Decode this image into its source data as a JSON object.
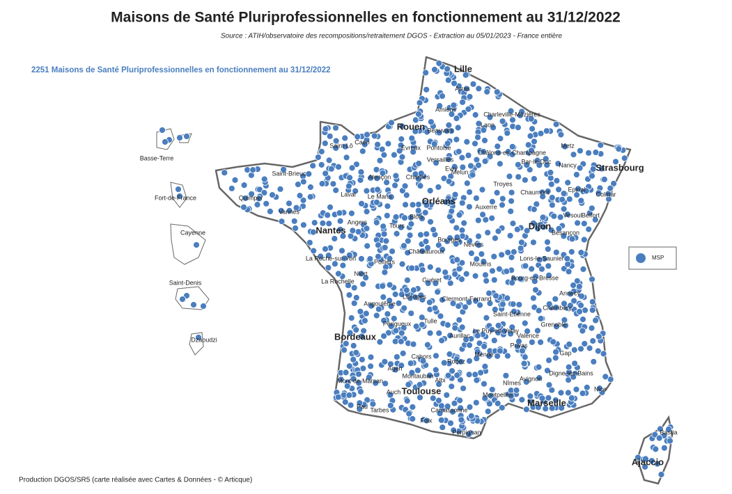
{
  "header": {
    "title": "Maisons de Santé Pluriprofessionnelles en fonctionnement au 31/12/2022",
    "source": "Source : ATIH/observatoire des recompositions/retraitement DGOS - Extraction au 05/01/2023 - France entière"
  },
  "map": {
    "subtitle": "2251 Maisons de Santé Pluriprofessionnelles en fonctionnement au 31/12/2022",
    "legend": {
      "label": "MSP"
    },
    "cities": [
      "Lille",
      "Arras",
      "Amiens",
      "Rouen",
      "Beauvais",
      "Caen",
      "Saint-Lô",
      "Evreux",
      "Pontoise",
      "Versailles",
      "Charleville-Mézières",
      "Laon",
      "Châlons-en-Champagne",
      "Bar-le-Duc",
      "Metz",
      "Nancy",
      "Strasbourg",
      "Epinal",
      "Colmar",
      "Saint-Brieuc",
      "Quimper",
      "Vannes",
      "Alençon",
      "Laval",
      "Le Mans",
      "Chartres",
      "Evry",
      "Melun",
      "Troyes",
      "Chaumont",
      "Orléans",
      "Auxerre",
      "Dijon",
      "Vesoul",
      "Belfort",
      "Angers",
      "Nantes",
      "Tours",
      "Blois",
      "Besançon",
      "Bourges",
      "Nevers",
      "Châteauroux",
      "La Roche-sur-Yon",
      "Niort",
      "Poitiers",
      "Moulins",
      "Lons-le-Saunier",
      "La Rochelle",
      "Guéret",
      "Bourg-en-Bresse",
      "Annecy",
      "Limoges",
      "Clermont-Ferrand",
      "Chambéry",
      "Angoulême",
      "Saint-Etienne",
      "Grenoble",
      "Périgueux",
      "Tulle",
      "Le Puy-en-Velay",
      "Bordeaux",
      "Aurillac",
      "Valence",
      "Privas",
      "Gap",
      "Mende",
      "Cahors",
      "Rodez",
      "Agen",
      "Digne-les-Bains",
      "Montauban",
      "Albi",
      "Mont-de-Marsan",
      "Nîmes",
      "Avignon",
      "Auch",
      "Toulouse",
      "Montpellier",
      "Nice",
      "Marseille",
      "Pau",
      "Tarbes",
      "Carcassonne",
      "Foix",
      "Perpignan",
      "Bastia",
      "Ajaccio",
      "Basse-Terre",
      "Fort-de-France",
      "Cayenne",
      "Saint-Denis",
      "Dzaoudzi"
    ]
  },
  "footer": "Production DGOS/SR5 (carte réalisée avec Cartes & Données - © Articque)"
}
